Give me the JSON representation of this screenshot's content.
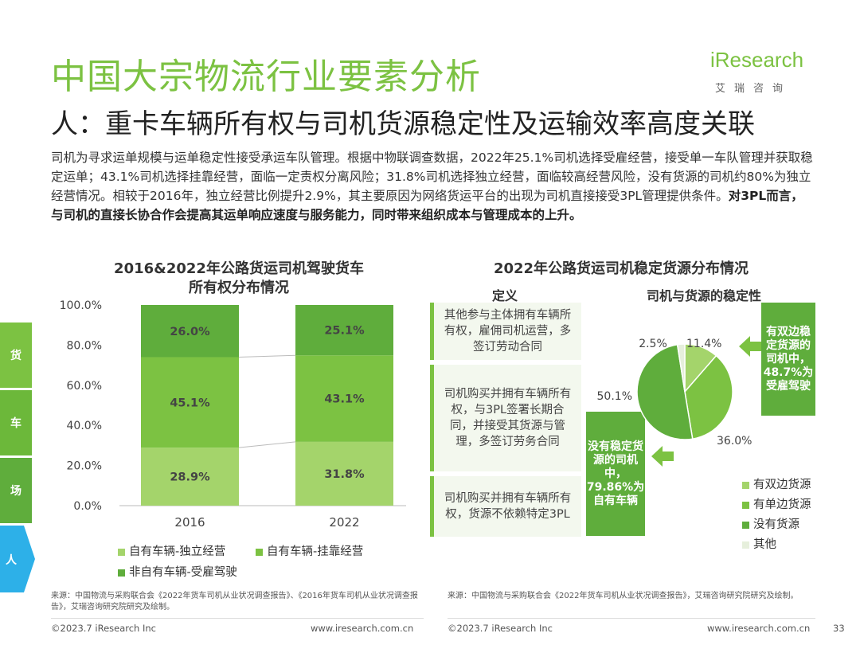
{
  "header": {
    "title": "中国大宗物流行业要素分析",
    "subtitle": "人：重卡车辆所有权与司机货源稳定性及运输效率高度关联",
    "logo_main": "iResearch",
    "logo_cn": "艾瑞咨询"
  },
  "intro": {
    "normal": "司机为寻求运单规模与运单稳定性接受承运车队管理。根据中物联调查数据，2022年25.1%司机选择受雇经营，接受单一车队管理并获取稳定运单；43.1%司机选择挂靠经营，面临一定责权分离风险；31.8%司机选择独立经营，面临较高经营风险，没有货源的司机约80%为独立经营情况。相较于2016年，独立经营比例提升2.9%，其主要原因为网络货运平台的出现为司机直接接受3PL管理提供条件。",
    "bold": "对3PL而言，与司机的直接长协合作会提高其运单响应速度与服务能力，同时带来组织成本与管理成本的上升。"
  },
  "side_tabs": [
    "货",
    "车",
    "场",
    "人"
  ],
  "colors": {
    "accent": "#7cc242",
    "independent": "#a4d46b",
    "affiliated": "#7cc242",
    "employed": "#5fad3c",
    "other": "#e6efdc"
  },
  "chart_data": [
    {
      "type": "bar",
      "stacked": true,
      "title": "2016&2022年公路货运司机驾驶货车所有权分布情况",
      "title_lines": [
        "2016&2022年公路货运司机驾驶货车",
        "所有权分布情况"
      ],
      "categories": [
        "2016",
        "2022"
      ],
      "series": [
        {
          "name": "自有车辆-独立经营",
          "values": [
            28.9,
            31.8
          ],
          "labels": [
            "28.9%",
            "31.8%"
          ]
        },
        {
          "name": "自有车辆-挂靠经营",
          "values": [
            45.1,
            43.1
          ],
          "labels": [
            "45.1%",
            "43.1%"
          ]
        },
        {
          "name": "非自有车辆-受雇驾驶",
          "values": [
            26.0,
            25.1
          ],
          "labels": [
            "26.0%",
            "25.1%"
          ]
        }
      ],
      "yticks": [
        "0.0%",
        "20.0%",
        "40.0%",
        "60.0%",
        "80.0%",
        "100.0%"
      ],
      "ylim": [
        0,
        100
      ],
      "legend": "bottom"
    },
    {
      "type": "pie",
      "title": "2022年公路货运司机稳定货源分布情况",
      "subtitle": "司机与货源的稳定性",
      "slices": [
        {
          "name": "有双边货源",
          "value": 11.4,
          "label": "11.4%"
        },
        {
          "name": "有单边货源",
          "value": 36.0,
          "label": "36.0%"
        },
        {
          "name": "没有货源",
          "value": 50.1,
          "label": "50.1%"
        },
        {
          "name": "其他",
          "value": 2.5,
          "label": "2.5%"
        }
      ],
      "legend": "bottom-right"
    }
  ],
  "definitions": {
    "header": "定义",
    "items": [
      "其他参与主体拥有车辆所有权，雇佣司机运营，多签订劳动合同",
      "司机购买并拥有车辆所有权，与3PL签署长期合同，并接受其货源与管理，多签订劳务合同",
      "司机购买并拥有车辆所有权，货源不依赖特定3PL"
    ]
  },
  "callouts": {
    "top": "有双边稳定货源的司机中，48.7%为受雇驾驶",
    "bottom": "没有稳定货源的司机中，79.86%为自有车辆"
  },
  "sources": {
    "left": "来源：中国物流与采购联合会《2022年货车司机从业状况调查报告》、《2016年货车司机从业状况调查报告》，艾瑞咨询研究院研究及绘制。",
    "right": "来源：中国物流与采购联合会《2022年货车司机从业状况调查报告》，艾瑞咨询研究院研究及绘制。"
  },
  "footer": {
    "copyright_left": "©2023.7 iResearch Inc",
    "url_left": "www.iresearch.com.cn",
    "copyright_right": "©2023.7 iResearch Inc",
    "url_right": "www.iresearch.com.cn",
    "page": "33"
  }
}
